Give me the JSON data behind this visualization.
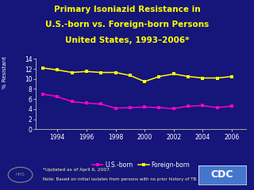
{
  "title_line1": "Primary Isoniazid Resistance in",
  "title_line2": "U.S.-born vs. Foreign-born Persons",
  "title_line3": "United States, 1993–2006*",
  "ylabel": "% Resistant",
  "background_color": "#15157a",
  "plot_bg_color": "#15157a",
  "title_color": "#ffff00",
  "years": [
    1993,
    1994,
    1995,
    1996,
    1997,
    1998,
    1999,
    2000,
    2001,
    2002,
    2003,
    2004,
    2005,
    2006
  ],
  "us_born": [
    7.0,
    6.5,
    5.5,
    5.2,
    5.0,
    4.2,
    4.3,
    4.4,
    4.3,
    4.1,
    4.6,
    4.7,
    4.3,
    4.6
  ],
  "foreign_born": [
    12.2,
    11.8,
    11.3,
    11.5,
    11.3,
    11.3,
    10.7,
    9.5,
    10.5,
    11.0,
    10.5,
    10.2,
    10.2,
    10.5
  ],
  "us_color": "#ff00cc",
  "foreign_color": "#ffff00",
  "ylim": [
    0,
    14
  ],
  "yticks": [
    0,
    2,
    4,
    6,
    8,
    10,
    12,
    14
  ],
  "xticks": [
    1994,
    1996,
    1998,
    2000,
    2002,
    2004,
    2006
  ],
  "footnote1": "*Updated as of April 6, 2007.",
  "footnote2": "Note: Based on initial isolates from persons with no prior history of TB.",
  "axis_color": "#aaaaaa",
  "tick_color": "#ffffff",
  "legend_us": "U.S.-born",
  "legend_foreign": "Foreign-born",
  "cdc_bg": "#4477cc",
  "cdc_text": "#ffffff"
}
